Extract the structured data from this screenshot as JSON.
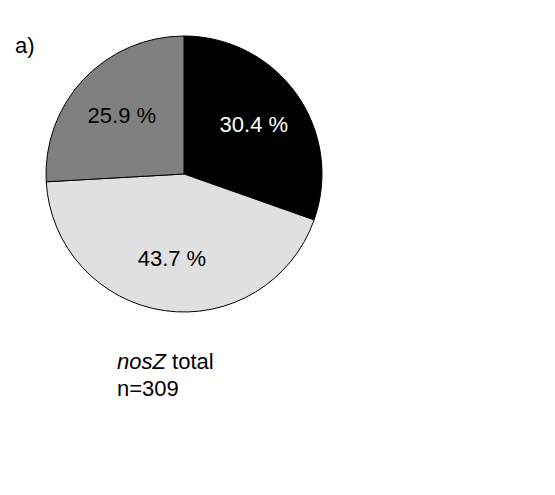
{
  "chart_data": {
    "type": "pie",
    "title": "nosZ total",
    "subtitle": "n=309",
    "annotations": [
      "a)"
    ],
    "values": [
      30.4,
      43.7,
      25.9
    ],
    "value_labels": [
      "30.4 %",
      "43.7 %",
      "25.9 %"
    ],
    "colors": [
      "#000000",
      "#e0e0e0",
      "#808080"
    ],
    "data_labels": true
  }
}
